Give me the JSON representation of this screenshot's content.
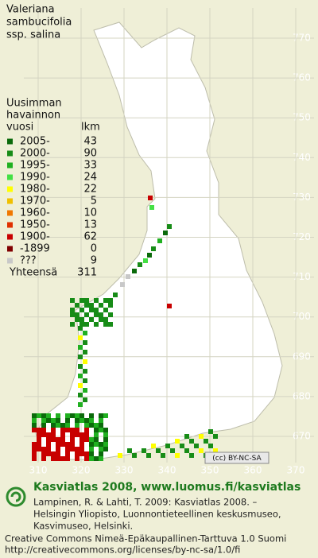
{
  "title_lines": [
    "Valeriana",
    "sambucifolia",
    "ssp. salina"
  ],
  "legend": {
    "heading_lines": [
      "Uusimman",
      "havainnon"
    ],
    "col_year": "vuosi",
    "col_count": "lkm",
    "rows": [
      {
        "label": "2005-",
        "count": 43,
        "color": "#0b6a0b"
      },
      {
        "label": "2000-",
        "count": 90,
        "color": "#178c17"
      },
      {
        "label": "1995-",
        "count": 33,
        "color": "#20b020"
      },
      {
        "label": "1990-",
        "count": 24,
        "color": "#44e044"
      },
      {
        "label": "1980-",
        "count": 22,
        "color": "#ffff00"
      },
      {
        "label": "1970-",
        "count": 5,
        "color": "#f0c000"
      },
      {
        "label": "1960-",
        "count": 10,
        "color": "#f07800"
      },
      {
        "label": "1950-",
        "count": 13,
        "color": "#e03000"
      },
      {
        "label": "1900-",
        "count": 62,
        "color": "#c80000"
      },
      {
        "label": "-1899",
        "count": 0,
        "color": "#800000"
      },
      {
        "label": "???",
        "count": 9,
        "color": "#c8c8c8"
      }
    ],
    "total_label": "Yhteensä",
    "total": 311
  },
  "grid": {
    "northing_labels": [
      770,
      760,
      750,
      740,
      730,
      720,
      710,
      700,
      690,
      680,
      670
    ],
    "easting_labels": [
      310,
      320,
      330,
      340,
      350,
      360,
      370
    ]
  },
  "license_badge": "(cc) BY-NC-SA",
  "footer": {
    "site": "Kasviatlas 2008, www.luomus.fi/kasviatlas",
    "citation_lines": [
      "Lampinen, R. & Lahti, T. 2009: Kasviatlas 2008. –",
      "Helsingin Yliopisto, Luonnontieteellinen keskusmuseo,",
      "Kasvimuseo, Helsinki."
    ],
    "license_lines": [
      "Creative Commons Nimeä-Epäkaupallinen-Tarttuva 1.0 Suomi",
      "http://creativecommons.org/licenses/by-nc-sa/1.0/fi"
    ]
  }
}
